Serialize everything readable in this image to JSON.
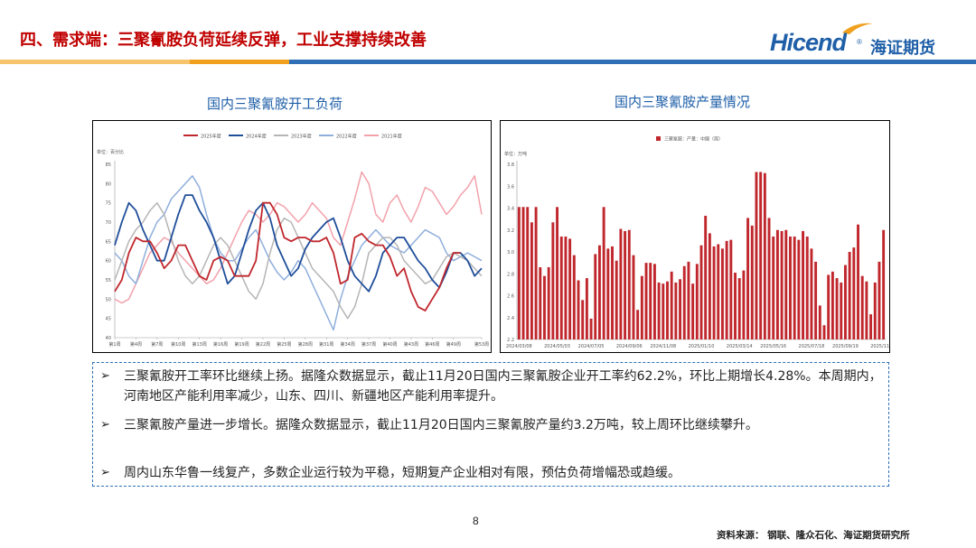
{
  "header": {
    "title": "四、需求端：三聚氰胺负荷延续反弹，工业支撑持续改善",
    "logo_en": "Hicend",
    "logo_reg": "®",
    "logo_cn": "海证期货",
    "colors": {
      "title": "#c00000",
      "brand": "#1f5fa8",
      "bar_light": "#f5c46b",
      "bar_orange": "#f0a01e",
      "bar_blue": "#2f6fb5"
    }
  },
  "charts": {
    "left_title": "国内三聚氰胺开工负荷",
    "right_title": "国内三聚氰胺产量情况"
  },
  "chart_data": [
    {
      "type": "line",
      "title": "国内三聚氰胺开工负荷",
      "unit_label": "单位：百分比",
      "ylim": [
        40,
        85
      ],
      "yticks": [
        40,
        45,
        50,
        55,
        60,
        65,
        70,
        75,
        80,
        85
      ],
      "x_tick_labels": [
        "第1周",
        "第4周",
        "第7周",
        "第10周",
        "第13周",
        "第16周",
        "第19周",
        "第22周",
        "第25周",
        "第28周",
        "第31周",
        "第34周",
        "第37周",
        "第40周",
        "第43周",
        "第46周",
        "第49周",
        "第53周"
      ],
      "x_count": 53,
      "legend_position": "top",
      "series": [
        {
          "name": "2025年度",
          "color": "#c0272d",
          "values": [
            52,
            55,
            62,
            66,
            65,
            65,
            62,
            58,
            60,
            64,
            64,
            60,
            56,
            55,
            60,
            61,
            60,
            56,
            56,
            56,
            60,
            75,
            75,
            72,
            66,
            65,
            66,
            66,
            65,
            65,
            66,
            62,
            54,
            55,
            66,
            67,
            65,
            64,
            64,
            61,
            56,
            58,
            52,
            48,
            47,
            50,
            53,
            58,
            62,
            62
          ]
        },
        {
          "name": "2024年度",
          "color": "#1f4e9a",
          "values": [
            64,
            70,
            75,
            73,
            68,
            64,
            60,
            60,
            66,
            72,
            77,
            77,
            73,
            70,
            66,
            60,
            54,
            56,
            62,
            68,
            73,
            75,
            71,
            64,
            60,
            56,
            58,
            63,
            66,
            68,
            70,
            71,
            66,
            60,
            56,
            54,
            52,
            56,
            62,
            64,
            66,
            66,
            63,
            60,
            58,
            55,
            53,
            57,
            62,
            62,
            60,
            56,
            58
          ]
        },
        {
          "name": "2023年度",
          "color": "#b5b5b5",
          "values": [
            55,
            60,
            65,
            68,
            70,
            73,
            75,
            72,
            66,
            60,
            56,
            54,
            56,
            60,
            64,
            66,
            64,
            60,
            56,
            52,
            50,
            54,
            62,
            68,
            71,
            70,
            66,
            62,
            58,
            56,
            54,
            52,
            48,
            45,
            48,
            54,
            62,
            64,
            66,
            66,
            64,
            60,
            58,
            56,
            54,
            55,
            58,
            61,
            62,
            61,
            60,
            58,
            56
          ]
        },
        {
          "name": "2022年度",
          "color": "#8faedb",
          "values": [
            62,
            60,
            56,
            54,
            60,
            66,
            70,
            72,
            76,
            78,
            80,
            82,
            79,
            72,
            66,
            62,
            60,
            60,
            63,
            66,
            68,
            64,
            60,
            57,
            55,
            57,
            60,
            58,
            54,
            50,
            46,
            42,
            50,
            56,
            60,
            64,
            66,
            68,
            66,
            64,
            63,
            62,
            64,
            66,
            68,
            67,
            66,
            62,
            60,
            61,
            62,
            61,
            60
          ]
        },
        {
          "name": "2021年度",
          "color": "#f2a1ab",
          "values": [
            50,
            49,
            50,
            54,
            58,
            62,
            64,
            66,
            65,
            62,
            60,
            58,
            56,
            54,
            55,
            58,
            62,
            66,
            70,
            73,
            72,
            70,
            72,
            75,
            74,
            72,
            70,
            72,
            75,
            73,
            71,
            66,
            64,
            70,
            76,
            83,
            80,
            72,
            70,
            75,
            77,
            73,
            70,
            74,
            79,
            78,
            75,
            72,
            74,
            77,
            79,
            82,
            72
          ]
        }
      ]
    },
    {
      "type": "bar",
      "title": "国内三聚氰胺产量情况",
      "unit_label": "单位：万吨",
      "legend_label": "三聚氰胺：产量：中国（周）",
      "legend_position": "top-center",
      "ylim": [
        2.2,
        3.8
      ],
      "yticks": [
        2.2,
        2.4,
        2.6,
        2.8,
        3.0,
        3.2,
        3.4,
        3.6,
        3.8
      ],
      "x_tick_labels": [
        "2024/03/08",
        "2024/05/03",
        "2024/07/05",
        "2024/09/06",
        "2024/11/08",
        "2025/01/10",
        "2025/03/14",
        "2025/05/16",
        "2025/07/18",
        "2025/09/19",
        "2025/11/21"
      ],
      "color": "#c0272d",
      "values": [
        3.41,
        3.41,
        3.41,
        3.27,
        3.41,
        2.86,
        2.78,
        2.86,
        3.27,
        3.41,
        3.14,
        3.14,
        3.12,
        2.97,
        2.74,
        2.56,
        2.76,
        2.39,
        2.98,
        3.06,
        3.41,
        3.03,
        3.05,
        2.92,
        3.21,
        3.19,
        3.2,
        2.97,
        2.47,
        2.78,
        2.9,
        2.9,
        2.89,
        2.72,
        2.71,
        2.73,
        2.82,
        2.72,
        2.75,
        2.87,
        2.91,
        2.71,
        2.89,
        3.06,
        3.33,
        3.17,
        3.05,
        3.07,
        3.03,
        3.1,
        3.11,
        2.81,
        2.76,
        2.83,
        3.31,
        3.24,
        3.73,
        3.73,
        3.72,
        3.31,
        3.14,
        3.2,
        3.19,
        3.2,
        3.14,
        3.14,
        3.11,
        3.19,
        3.14,
        3.03,
        2.91,
        2.51,
        2.33,
        2.79,
        2.82,
        2.76,
        2.72,
        2.88,
        3.0,
        3.04,
        3.25,
        2.78,
        2.73,
        2.43,
        2.72,
        2.91,
        3.2
      ]
    }
  ],
  "points": [
    "三聚氰胺开工率环比继续上扬。据隆众数据显示，截止11月20日国内三聚氰胺企业开工率约62.2%，环比上期增长4.28%。本周期内，河南地区产能利用率减少，山东、四川、新疆地区产能利用率提升。",
    "三聚氰胺产量进一步增长。据隆众数据显示，截止11月20日国内三聚氰胺产量约3.2万吨，较上周环比继续攀升。",
    "周内山东华鲁一线复产，多数企业运行较为平稳，短期复产企业相对有限，预估负荷增幅恐或趋缓。"
  ],
  "page_number": "8",
  "source": "资料来源：  钢联、隆众石化、海证期货研究所"
}
